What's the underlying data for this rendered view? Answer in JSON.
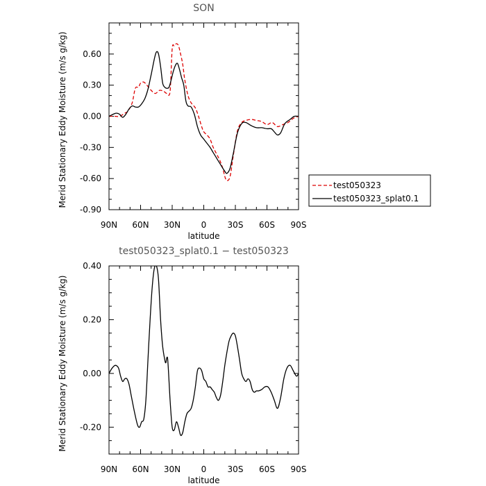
{
  "chart_data": [
    {
      "type": "line",
      "title": "SON",
      "xlabel": "latitude",
      "ylabel": "Merid Stationary Eddy Moisture (m/s g/kg)",
      "xlim": [
        90,
        -90
      ],
      "ylim": [
        -0.9,
        0.9
      ],
      "xticks": [
        90,
        60,
        30,
        0,
        -30,
        -60,
        -90
      ],
      "xtick_labels": [
        "90N",
        "60N",
        "30N",
        "0",
        "30S",
        "60S",
        "90S"
      ],
      "yticks": [
        -0.9,
        -0.6,
        -0.3,
        0.0,
        0.3,
        0.6
      ],
      "ytick_labels": [
        "-0.90",
        "-0.60",
        "-0.30",
        "0.00",
        "0.30",
        "0.60"
      ],
      "legend": "right",
      "series": [
        {
          "name": "test050323",
          "color": "#dd0000",
          "dash": "dashed",
          "x": [
            90,
            85,
            80,
            75,
            72,
            68,
            65,
            62,
            60,
            57,
            54,
            50,
            46,
            42,
            38,
            35,
            32,
            30,
            28,
            26,
            24,
            22,
            20,
            18,
            15,
            12,
            8,
            5,
            2,
            0,
            -3,
            -6,
            -9,
            -12,
            -15,
            -18,
            -20,
            -22,
            -25,
            -28,
            -32,
            -36,
            -40,
            -45,
            -50,
            -55,
            -60,
            -65,
            -70,
            -75,
            -80,
            -85,
            -90
          ],
          "y": [
            0.0,
            0.0,
            0.0,
            0.03,
            0.05,
            0.13,
            0.27,
            0.28,
            0.32,
            0.33,
            0.3,
            0.25,
            0.22,
            0.25,
            0.24,
            0.22,
            0.24,
            0.65,
            0.68,
            0.7,
            0.68,
            0.6,
            0.5,
            0.35,
            0.2,
            0.13,
            0.08,
            0.0,
            -0.1,
            -0.15,
            -0.18,
            -0.22,
            -0.3,
            -0.36,
            -0.42,
            -0.5,
            -0.58,
            -0.62,
            -0.58,
            -0.38,
            -0.14,
            -0.06,
            -0.04,
            -0.03,
            -0.04,
            -0.05,
            -0.08,
            -0.06,
            -0.1,
            -0.08,
            -0.06,
            -0.02,
            0.0
          ]
        },
        {
          "name": "test050323_splat0.1",
          "color": "#000000",
          "dash": "solid",
          "x": [
            90,
            86,
            83,
            80,
            77,
            74,
            71,
            68,
            65,
            62,
            59,
            56,
            53,
            50,
            47,
            45,
            43,
            41,
            39,
            37,
            35,
            33,
            31,
            29,
            27,
            25,
            23,
            21,
            19,
            17,
            15,
            12,
            9,
            6,
            3,
            0,
            -3,
            -6,
            -9,
            -12,
            -15,
            -18,
            -20,
            -22,
            -25,
            -28,
            -32,
            -36,
            -40,
            -45,
            -50,
            -55,
            -60,
            -64,
            -67,
            -70,
            -73,
            -77,
            -82,
            -86,
            -90
          ],
          "y": [
            0.0,
            0.02,
            0.03,
            0.02,
            -0.01,
            0.02,
            0.07,
            0.1,
            0.09,
            0.09,
            0.12,
            0.17,
            0.26,
            0.4,
            0.55,
            0.62,
            0.6,
            0.48,
            0.32,
            0.28,
            0.27,
            0.28,
            0.35,
            0.43,
            0.49,
            0.51,
            0.45,
            0.37,
            0.3,
            0.15,
            0.1,
            0.09,
            0.02,
            -0.1,
            -0.18,
            -0.22,
            -0.26,
            -0.3,
            -0.35,
            -0.4,
            -0.45,
            -0.5,
            -0.53,
            -0.55,
            -0.5,
            -0.36,
            -0.16,
            -0.07,
            -0.06,
            -0.09,
            -0.11,
            -0.11,
            -0.12,
            -0.12,
            -0.15,
            -0.18,
            -0.16,
            -0.07,
            -0.03,
            0.0,
            0.0
          ]
        }
      ]
    },
    {
      "type": "line",
      "title": "test050323_splat0.1 − test050323",
      "xlabel": "latitude",
      "ylabel": "Merid Stationary Eddy Moisture (m/s g/kg)",
      "xlim": [
        90,
        -90
      ],
      "ylim": [
        -0.3,
        0.4
      ],
      "xticks": [
        90,
        60,
        30,
        0,
        -30,
        -60,
        -90
      ],
      "xtick_labels": [
        "90N",
        "60N",
        "30N",
        "0",
        "30S",
        "60S",
        "90S"
      ],
      "yticks": [
        -0.2,
        0.0,
        0.2,
        0.4
      ],
      "ytick_labels": [
        "-0.20",
        "0.00",
        "0.20",
        "0.40"
      ],
      "series": [
        {
          "color": "#000000",
          "dash": "solid",
          "x": [
            90,
            87,
            84,
            81,
            79,
            77,
            75,
            73,
            71,
            69,
            66,
            63,
            61,
            59,
            57,
            55,
            53,
            51,
            49,
            47,
            45,
            43,
            41,
            39,
            37,
            36,
            35,
            34,
            32,
            30,
            28,
            26,
            24,
            22,
            20,
            18,
            16,
            14,
            12,
            10,
            8,
            6,
            4,
            2,
            0,
            -2,
            -4,
            -6,
            -8,
            -10,
            -12,
            -14,
            -16,
            -18,
            -20,
            -22,
            -24,
            -26,
            -28,
            -30,
            -32,
            -34,
            -36,
            -38,
            -40,
            -42,
            -44,
            -46,
            -48,
            -50,
            -52,
            -55,
            -58,
            -61,
            -64,
            -67,
            -70,
            -73,
            -76,
            -79,
            -82,
            -85,
            -88,
            -90
          ],
          "y": [
            0.0,
            0.02,
            0.03,
            0.02,
            -0.01,
            -0.03,
            -0.02,
            -0.02,
            -0.04,
            -0.08,
            -0.14,
            -0.19,
            -0.2,
            -0.18,
            -0.17,
            -0.1,
            0.05,
            0.2,
            0.32,
            0.39,
            0.4,
            0.35,
            0.2,
            0.1,
            0.05,
            0.04,
            0.06,
            0.04,
            -0.1,
            -0.2,
            -0.21,
            -0.18,
            -0.2,
            -0.23,
            -0.22,
            -0.18,
            -0.15,
            -0.14,
            -0.13,
            -0.1,
            -0.05,
            0.01,
            0.02,
            0.01,
            -0.02,
            -0.03,
            -0.05,
            -0.05,
            -0.06,
            -0.07,
            -0.09,
            -0.1,
            -0.08,
            -0.03,
            0.03,
            0.08,
            0.12,
            0.14,
            0.15,
            0.14,
            0.1,
            0.05,
            0.0,
            -0.02,
            -0.03,
            -0.02,
            -0.03,
            -0.06,
            -0.07,
            -0.065,
            -0.065,
            -0.06,
            -0.05,
            -0.05,
            -0.07,
            -0.1,
            -0.13,
            -0.09,
            -0.02,
            0.02,
            0.03,
            0.01,
            -0.01,
            0.0
          ]
        }
      ]
    }
  ]
}
